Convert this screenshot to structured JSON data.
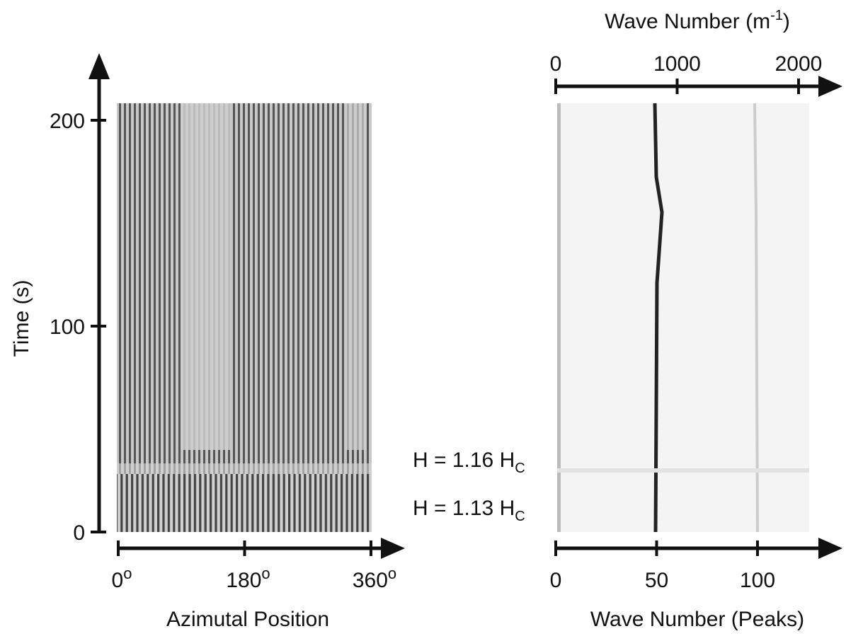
{
  "left_panel": {
    "y_axis": {
      "label": "Time (s)",
      "range": [
        0,
        200
      ],
      "ticks": [
        0,
        100,
        200
      ]
    },
    "x_axis": {
      "label": "Azimutal Position",
      "range": [
        0,
        360
      ],
      "ticks": [
        0,
        180,
        360
      ],
      "tick_suffix": "o"
    }
  },
  "right_panel": {
    "bottom_axis": {
      "label": "Wave Number (Peaks)",
      "range": [
        0,
        100
      ],
      "ticks": [
        0,
        50,
        100
      ]
    },
    "top_axis": {
      "label_main": "Wave Number (m",
      "label_sup": "-1",
      "label_end": ")",
      "range": [
        0,
        2000
      ],
      "ticks": [
        0,
        1000,
        2000
      ]
    }
  },
  "annotations": [
    {
      "text": "H = 1.16 H",
      "sub": "C"
    },
    {
      "text": "H = 1.13 H",
      "sub": "C"
    }
  ]
}
